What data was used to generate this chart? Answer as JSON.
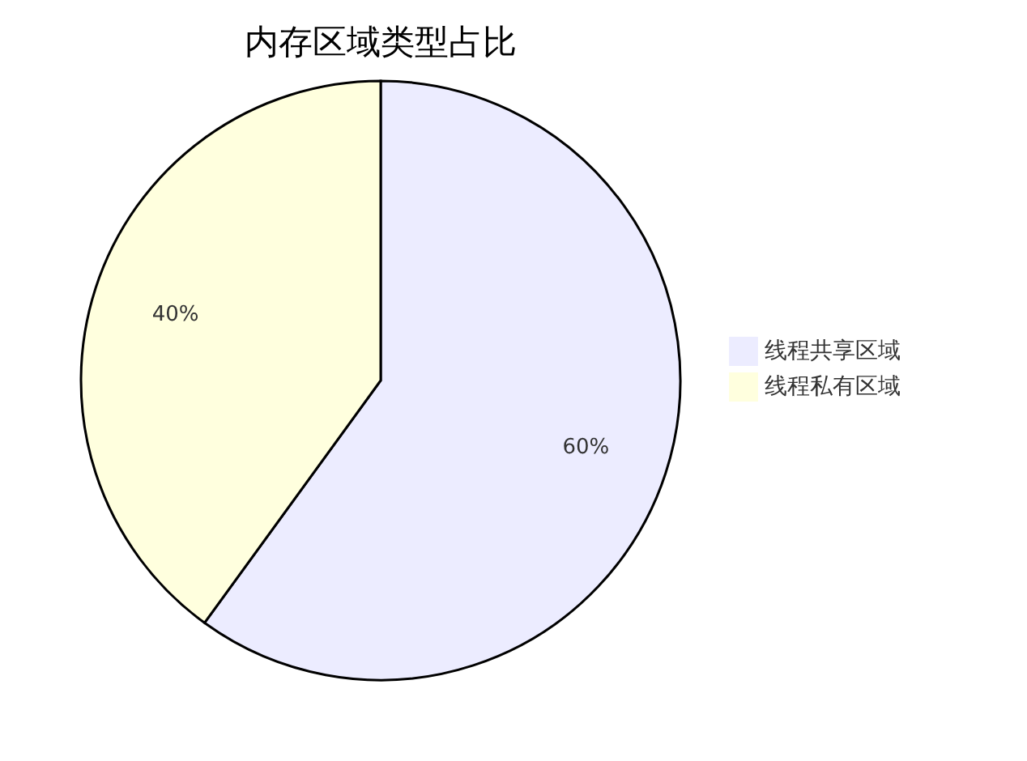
{
  "chart_data": {
    "type": "pie",
    "title": "内存区域类型占比",
    "categories": [
      "线程共享区域",
      "线程私有区域"
    ],
    "values": [
      60,
      40
    ],
    "colors": [
      "#ececff",
      "#ffffde"
    ],
    "value_labels": [
      "60%",
      "40%"
    ],
    "legend": "right"
  }
}
